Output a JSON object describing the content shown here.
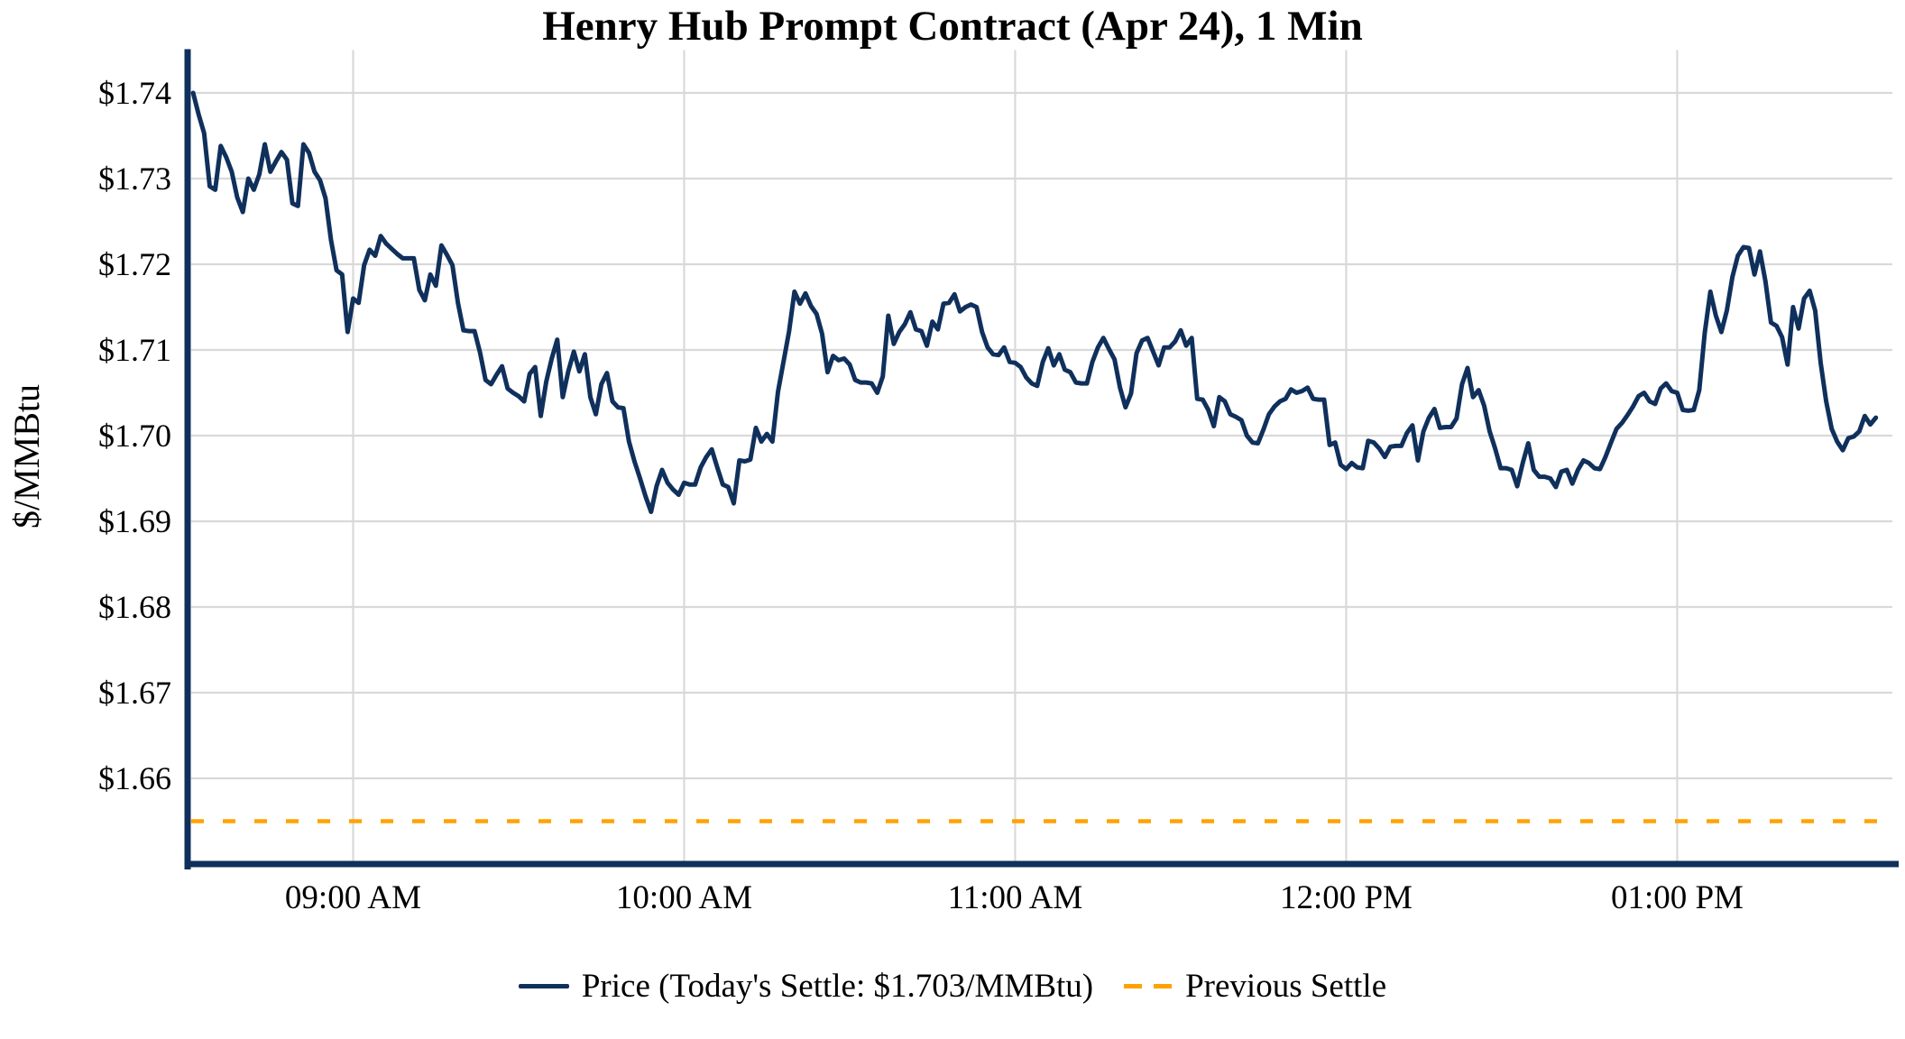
{
  "title": "Henry Hub Prompt Contract (Apr 24), 1 Min",
  "y_axis_label": "$/MMBtu",
  "colors": {
    "price_line": "#10305c",
    "prev_settle_line": "#FFA200",
    "grid": "#d9d9d9",
    "spine": "#10305c",
    "text": "#000000",
    "background": "#ffffff"
  },
  "legend": {
    "price_label": "Price (Today's Settle: $1.703/MMBtu)",
    "prev_settle_label": "Previous Settle"
  },
  "chart_data": {
    "type": "line",
    "title": "Henry Hub Prompt Contract (Apr 24), 1 Min",
    "xlabel": "",
    "ylabel": "$/MMBtu",
    "grid": true,
    "legend_position": "bottom-center",
    "ylim": [
      1.65,
      1.745
    ],
    "xlim_minutes_of_day": [
      510,
      819
    ],
    "y_ticks": [
      1.66,
      1.67,
      1.68,
      1.69,
      1.7,
      1.71,
      1.72,
      1.73,
      1.74
    ],
    "y_tick_labels": [
      "$1.66",
      "$1.67",
      "$1.68",
      "$1.69",
      "$1.70",
      "$1.71",
      "$1.72",
      "$1.73",
      "$1.74"
    ],
    "x_tick_minutes_of_day": [
      540,
      600,
      660,
      720,
      780
    ],
    "x_tick_labels": [
      "09:00 AM",
      "10:00 AM",
      "11:00 AM",
      "12:00 PM",
      "01:00 PM"
    ],
    "previous_settle": 1.655,
    "todays_settle": 1.703,
    "series_name": "Price",
    "start_minute_of_day": 511,
    "start_time": "08:31 AM",
    "end_time": "01:36 PM",
    "interval_minutes": 1,
    "prices": [
      1.74,
      1.7375,
      1.7353,
      1.7291,
      1.7287,
      1.7338,
      1.7325,
      1.7308,
      1.7278,
      1.7261,
      1.73,
      1.7287,
      1.7305,
      1.734,
      1.7308,
      1.732,
      1.7331,
      1.7322,
      1.7271,
      1.7268,
      1.734,
      1.733,
      1.7308,
      1.7298,
      1.7277,
      1.7228,
      1.7193,
      1.7188,
      1.7121,
      1.716,
      1.7155,
      1.7199,
      1.7217,
      1.721,
      1.7233,
      1.7224,
      1.7218,
      1.7212,
      1.7207,
      1.7207,
      1.7207,
      1.717,
      1.7158,
      1.7188,
      1.7175,
      1.7222,
      1.7211,
      1.7199,
      1.7155,
      1.7123,
      1.7122,
      1.7122,
      1.7097,
      1.7065,
      1.706,
      1.7071,
      1.7081,
      1.7055,
      1.705,
      1.7046,
      1.704,
      1.7072,
      1.708,
      1.7023,
      1.7063,
      1.709,
      1.7112,
      1.7045,
      1.7075,
      1.7098,
      1.7075,
      1.7095,
      1.7045,
      1.7025,
      1.706,
      1.7073,
      1.704,
      1.7033,
      1.7032,
      1.6993,
      1.697,
      1.695,
      1.6929,
      1.6911,
      1.6941,
      1.696,
      1.6945,
      1.6937,
      1.6931,
      1.6945,
      1.6943,
      1.6943,
      1.6963,
      1.6975,
      1.6984,
      1.6963,
      1.6943,
      1.694,
      1.6921,
      1.6971,
      1.697,
      1.6972,
      1.7009,
      1.6993,
      1.7002,
      1.6993,
      1.7051,
      1.7086,
      1.7121,
      1.7168,
      1.7154,
      1.7166,
      1.7151,
      1.7142,
      1.7119,
      1.7074,
      1.7093,
      1.7088,
      1.709,
      1.7083,
      1.7065,
      1.7062,
      1.7062,
      1.7061,
      1.705,
      1.7069,
      1.714,
      1.7107,
      1.7121,
      1.713,
      1.7144,
      1.7124,
      1.7122,
      1.7105,
      1.7133,
      1.7124,
      1.7154,
      1.7155,
      1.7165,
      1.7145,
      1.715,
      1.7153,
      1.715,
      1.7121,
      1.7103,
      1.7095,
      1.7094,
      1.7103,
      1.7086,
      1.7085,
      1.708,
      1.7068,
      1.7061,
      1.7058,
      1.7086,
      1.7102,
      1.7082,
      1.7095,
      1.7077,
      1.7074,
      1.7062,
      1.7061,
      1.7061,
      1.7086,
      1.7103,
      1.7114,
      1.7101,
      1.7089,
      1.7056,
      1.7033,
      1.7049,
      1.7096,
      1.7111,
      1.7114,
      1.7098,
      1.7082,
      1.7103,
      1.7103,
      1.711,
      1.7123,
      1.7105,
      1.7114,
      1.7043,
      1.7042,
      1.703,
      1.7011,
      1.7045,
      1.704,
      1.7025,
      1.7022,
      1.7018,
      1.7,
      1.6992,
      1.6991,
      1.7007,
      1.7025,
      1.7034,
      1.704,
      1.7043,
      1.7054,
      1.705,
      1.7052,
      1.7056,
      1.7043,
      1.7042,
      1.7042,
      1.6989,
      1.6992,
      1.6966,
      1.6961,
      1.6968,
      1.6963,
      1.6962,
      1.6994,
      1.6992,
      1.6985,
      1.6975,
      1.6987,
      1.6988,
      1.6988,
      1.7003,
      1.7012,
      1.6971,
      1.7005,
      1.7021,
      1.7031,
      1.7009,
      1.701,
      1.701,
      1.702,
      1.706,
      1.7079,
      1.7045,
      1.7053,
      1.7035,
      1.7005,
      1.6985,
      1.6962,
      1.6962,
      1.696,
      1.6941,
      1.6968,
      1.6991,
      1.696,
      1.6952,
      1.6952,
      1.695,
      1.694,
      1.6958,
      1.696,
      1.6944,
      1.696,
      1.6971,
      1.6968,
      1.6962,
      1.6961,
      1.6975,
      1.6992,
      1.7008,
      1.7015,
      1.7024,
      1.7034,
      1.7046,
      1.705,
      1.704,
      1.7037,
      1.7055,
      1.7061,
      1.7052,
      1.705,
      1.703,
      1.7029,
      1.703,
      1.7053,
      1.712,
      1.7168,
      1.714,
      1.7121,
      1.7146,
      1.7185,
      1.721,
      1.722,
      1.7219,
      1.7188,
      1.7215,
      1.718,
      1.7132,
      1.7128,
      1.7115,
      1.7083,
      1.715,
      1.7125,
      1.716,
      1.7169,
      1.7146,
      1.7085,
      1.704,
      1.7008,
      1.6993,
      1.6983,
      1.6997,
      1.6999,
      1.7005,
      1.7023,
      1.7013,
      1.7021
    ]
  }
}
